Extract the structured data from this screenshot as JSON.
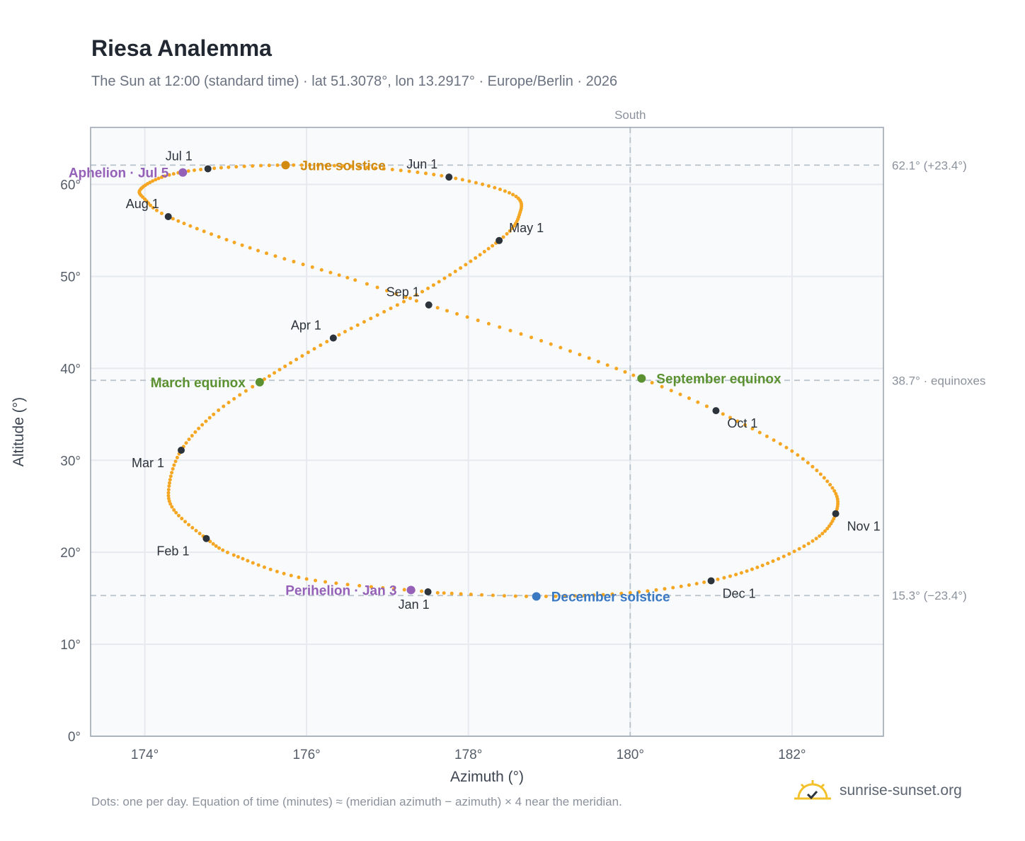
{
  "header": {
    "title": "Riesa Analemma",
    "subtitle": "The Sun at 12:00 (standard time) · lat 51.3078°, lon 13.2917° · Europe/Berlin · 2026"
  },
  "footer": {
    "note": "Dots: one per day. Equation of time (minutes) ≈ (meridian azimuth − azimuth) × 4 near the meridian.",
    "brand": "sunrise-sunset.org"
  },
  "colors": {
    "curve": "#f5a623",
    "month_dot": "#2d333b",
    "june_solstice": "#d28a0f",
    "december_solstice": "#3a78c2",
    "equinox": "#5b9130",
    "apsis": "#9460b8",
    "grid": "#e6eaee",
    "reference_line": "#b9c3cc",
    "plot_bg": "#f8fafc",
    "frame": "#98a2af"
  },
  "chart_data": {
    "type": "scatter",
    "title": "Riesa Analemma",
    "xlabel": "Azimuth (°)",
    "ylabel": "Altitude (°)",
    "xlim": [
      173.33,
      183.13
    ],
    "ylim": [
      0,
      66.2
    ],
    "xticks": [
      174,
      176,
      178,
      180,
      182
    ],
    "xtick_labels": [
      "174°",
      "176°",
      "178°",
      "180°",
      "182°"
    ],
    "yticks": [
      0,
      10,
      20,
      30,
      40,
      50,
      60
    ],
    "ytick_labels": [
      "0°",
      "10°",
      "20°",
      "30°",
      "40°",
      "50°",
      "60°"
    ],
    "grid": true,
    "meridian": {
      "azimuth": 180,
      "label": "South"
    },
    "reference_lines": [
      {
        "altitude": 62.1,
        "label": "62.1° (+23.4°)"
      },
      {
        "altitude": 38.7,
        "label": "38.7° · equinoxes"
      },
      {
        "altitude": 15.3,
        "label": "15.3° (−23.4°)"
      }
    ],
    "month_markers": [
      {
        "label": "Jan 1",
        "azimuth": 177.5,
        "altitude": 15.7,
        "pos": "below"
      },
      {
        "label": "Feb 1",
        "azimuth": 174.76,
        "altitude": 21.5,
        "pos": "below-left"
      },
      {
        "label": "Mar 1",
        "azimuth": 174.45,
        "altitude": 31.1,
        "pos": "below-left"
      },
      {
        "label": "Apr 1",
        "azimuth": 176.33,
        "altitude": 43.3,
        "pos": "above-left"
      },
      {
        "label": "May 1",
        "azimuth": 178.38,
        "altitude": 53.9,
        "pos": "above-right"
      },
      {
        "label": "Jun 1",
        "azimuth": 177.76,
        "altitude": 60.8,
        "pos": "above-left"
      },
      {
        "label": "Jul 1",
        "azimuth": 174.78,
        "altitude": 61.7,
        "pos": "above-left"
      },
      {
        "label": "Aug 1",
        "azimuth": 174.29,
        "altitude": 56.5,
        "pos": "above-left"
      },
      {
        "label": "Sep 1",
        "azimuth": 177.51,
        "altitude": 46.9,
        "pos": "above-left"
      },
      {
        "label": "Oct 1",
        "azimuth": 181.06,
        "altitude": 35.4,
        "pos": "below-right"
      },
      {
        "label": "Nov 1",
        "azimuth": 182.54,
        "altitude": 24.2,
        "pos": "below-right"
      },
      {
        "label": "Dec 1",
        "azimuth": 181.0,
        "altitude": 16.9,
        "pos": "below-right"
      }
    ],
    "events": [
      {
        "label": "June solstice",
        "azimuth": 175.74,
        "altitude": 62.1,
        "color_key": "june_solstice",
        "side": "right"
      },
      {
        "label": "December solstice",
        "azimuth": 178.84,
        "altitude": 15.2,
        "color_key": "december_solstice",
        "side": "right"
      },
      {
        "label": "March equinox",
        "azimuth": 175.42,
        "altitude": 38.5,
        "color_key": "equinox",
        "side": "left"
      },
      {
        "label": "September equinox",
        "azimuth": 180.14,
        "altitude": 38.9,
        "color_key": "equinox",
        "side": "right"
      },
      {
        "label": "Aphelion · Jul 5",
        "azimuth": 174.47,
        "altitude": 61.3,
        "color_key": "apsis",
        "side": "left"
      },
      {
        "label": "Perihelion · Jan 3",
        "azimuth": 177.29,
        "altitude": 15.9,
        "color_key": "apsis",
        "side": "left"
      }
    ],
    "curve_key_points": [
      {
        "day": 1,
        "azimuth": 177.5,
        "altitude": 15.7
      },
      {
        "day": 13,
        "azimuth": 176.0,
        "altitude": 17.1
      },
      {
        "day": 25,
        "azimuth": 175.1,
        "altitude": 19.7
      },
      {
        "day": 32,
        "azimuth": 174.76,
        "altitude": 21.5
      },
      {
        "day": 42,
        "azimuth": 174.36,
        "altitude": 24.6
      },
      {
        "day": 50,
        "azimuth": 174.3,
        "altitude": 27.2
      },
      {
        "day": 60,
        "azimuth": 174.45,
        "altitude": 31.1
      },
      {
        "day": 70,
        "azimuth": 174.85,
        "altitude": 35.0
      },
      {
        "day": 78,
        "azimuth": 175.42,
        "altitude": 38.5
      },
      {
        "day": 91,
        "azimuth": 176.33,
        "altitude": 43.3
      },
      {
        "day": 106,
        "azimuth": 177.5,
        "altitude": 48.7
      },
      {
        "day": 121,
        "azimuth": 178.38,
        "altitude": 53.9
      },
      {
        "day": 131,
        "azimuth": 178.63,
        "altitude": 56.7
      },
      {
        "day": 141,
        "azimuth": 178.55,
        "altitude": 58.9
      },
      {
        "day": 152,
        "azimuth": 177.76,
        "altitude": 60.8
      },
      {
        "day": 162,
        "azimuth": 176.75,
        "altitude": 61.85
      },
      {
        "day": 172,
        "azimuth": 175.74,
        "altitude": 62.1
      },
      {
        "day": 182,
        "azimuth": 174.78,
        "altitude": 61.7
      },
      {
        "day": 190,
        "azimuth": 174.25,
        "altitude": 60.9
      },
      {
        "day": 200,
        "azimuth": 173.95,
        "altitude": 59.5
      },
      {
        "day": 206,
        "azimuth": 174.0,
        "altitude": 58.4
      },
      {
        "day": 213,
        "azimuth": 174.29,
        "altitude": 56.5
      },
      {
        "day": 225,
        "azimuth": 175.3,
        "altitude": 53.1
      },
      {
        "day": 237,
        "azimuth": 176.6,
        "altitude": 49.6
      },
      {
        "day": 244,
        "azimuth": 177.51,
        "altitude": 46.9
      },
      {
        "day": 255,
        "azimuth": 178.9,
        "altitude": 43.0
      },
      {
        "day": 266,
        "azimuth": 180.14,
        "altitude": 38.9
      },
      {
        "day": 274,
        "azimuth": 181.06,
        "altitude": 35.4
      },
      {
        "day": 285,
        "azimuth": 182.0,
        "altitude": 31.0
      },
      {
        "day": 295,
        "azimuth": 182.5,
        "altitude": 27.0
      },
      {
        "day": 305,
        "azimuth": 182.54,
        "altitude": 24.2
      },
      {
        "day": 315,
        "azimuth": 182.3,
        "altitude": 21.5
      },
      {
        "day": 325,
        "azimuth": 181.7,
        "altitude": 18.8
      },
      {
        "day": 335,
        "azimuth": 181.0,
        "altitude": 16.9
      },
      {
        "day": 345,
        "azimuth": 180.0,
        "altitude": 15.6
      },
      {
        "day": 355,
        "azimuth": 178.84,
        "altitude": 15.2
      },
      {
        "day": 365,
        "azimuth": 177.62,
        "altitude": 15.6
      }
    ]
  }
}
